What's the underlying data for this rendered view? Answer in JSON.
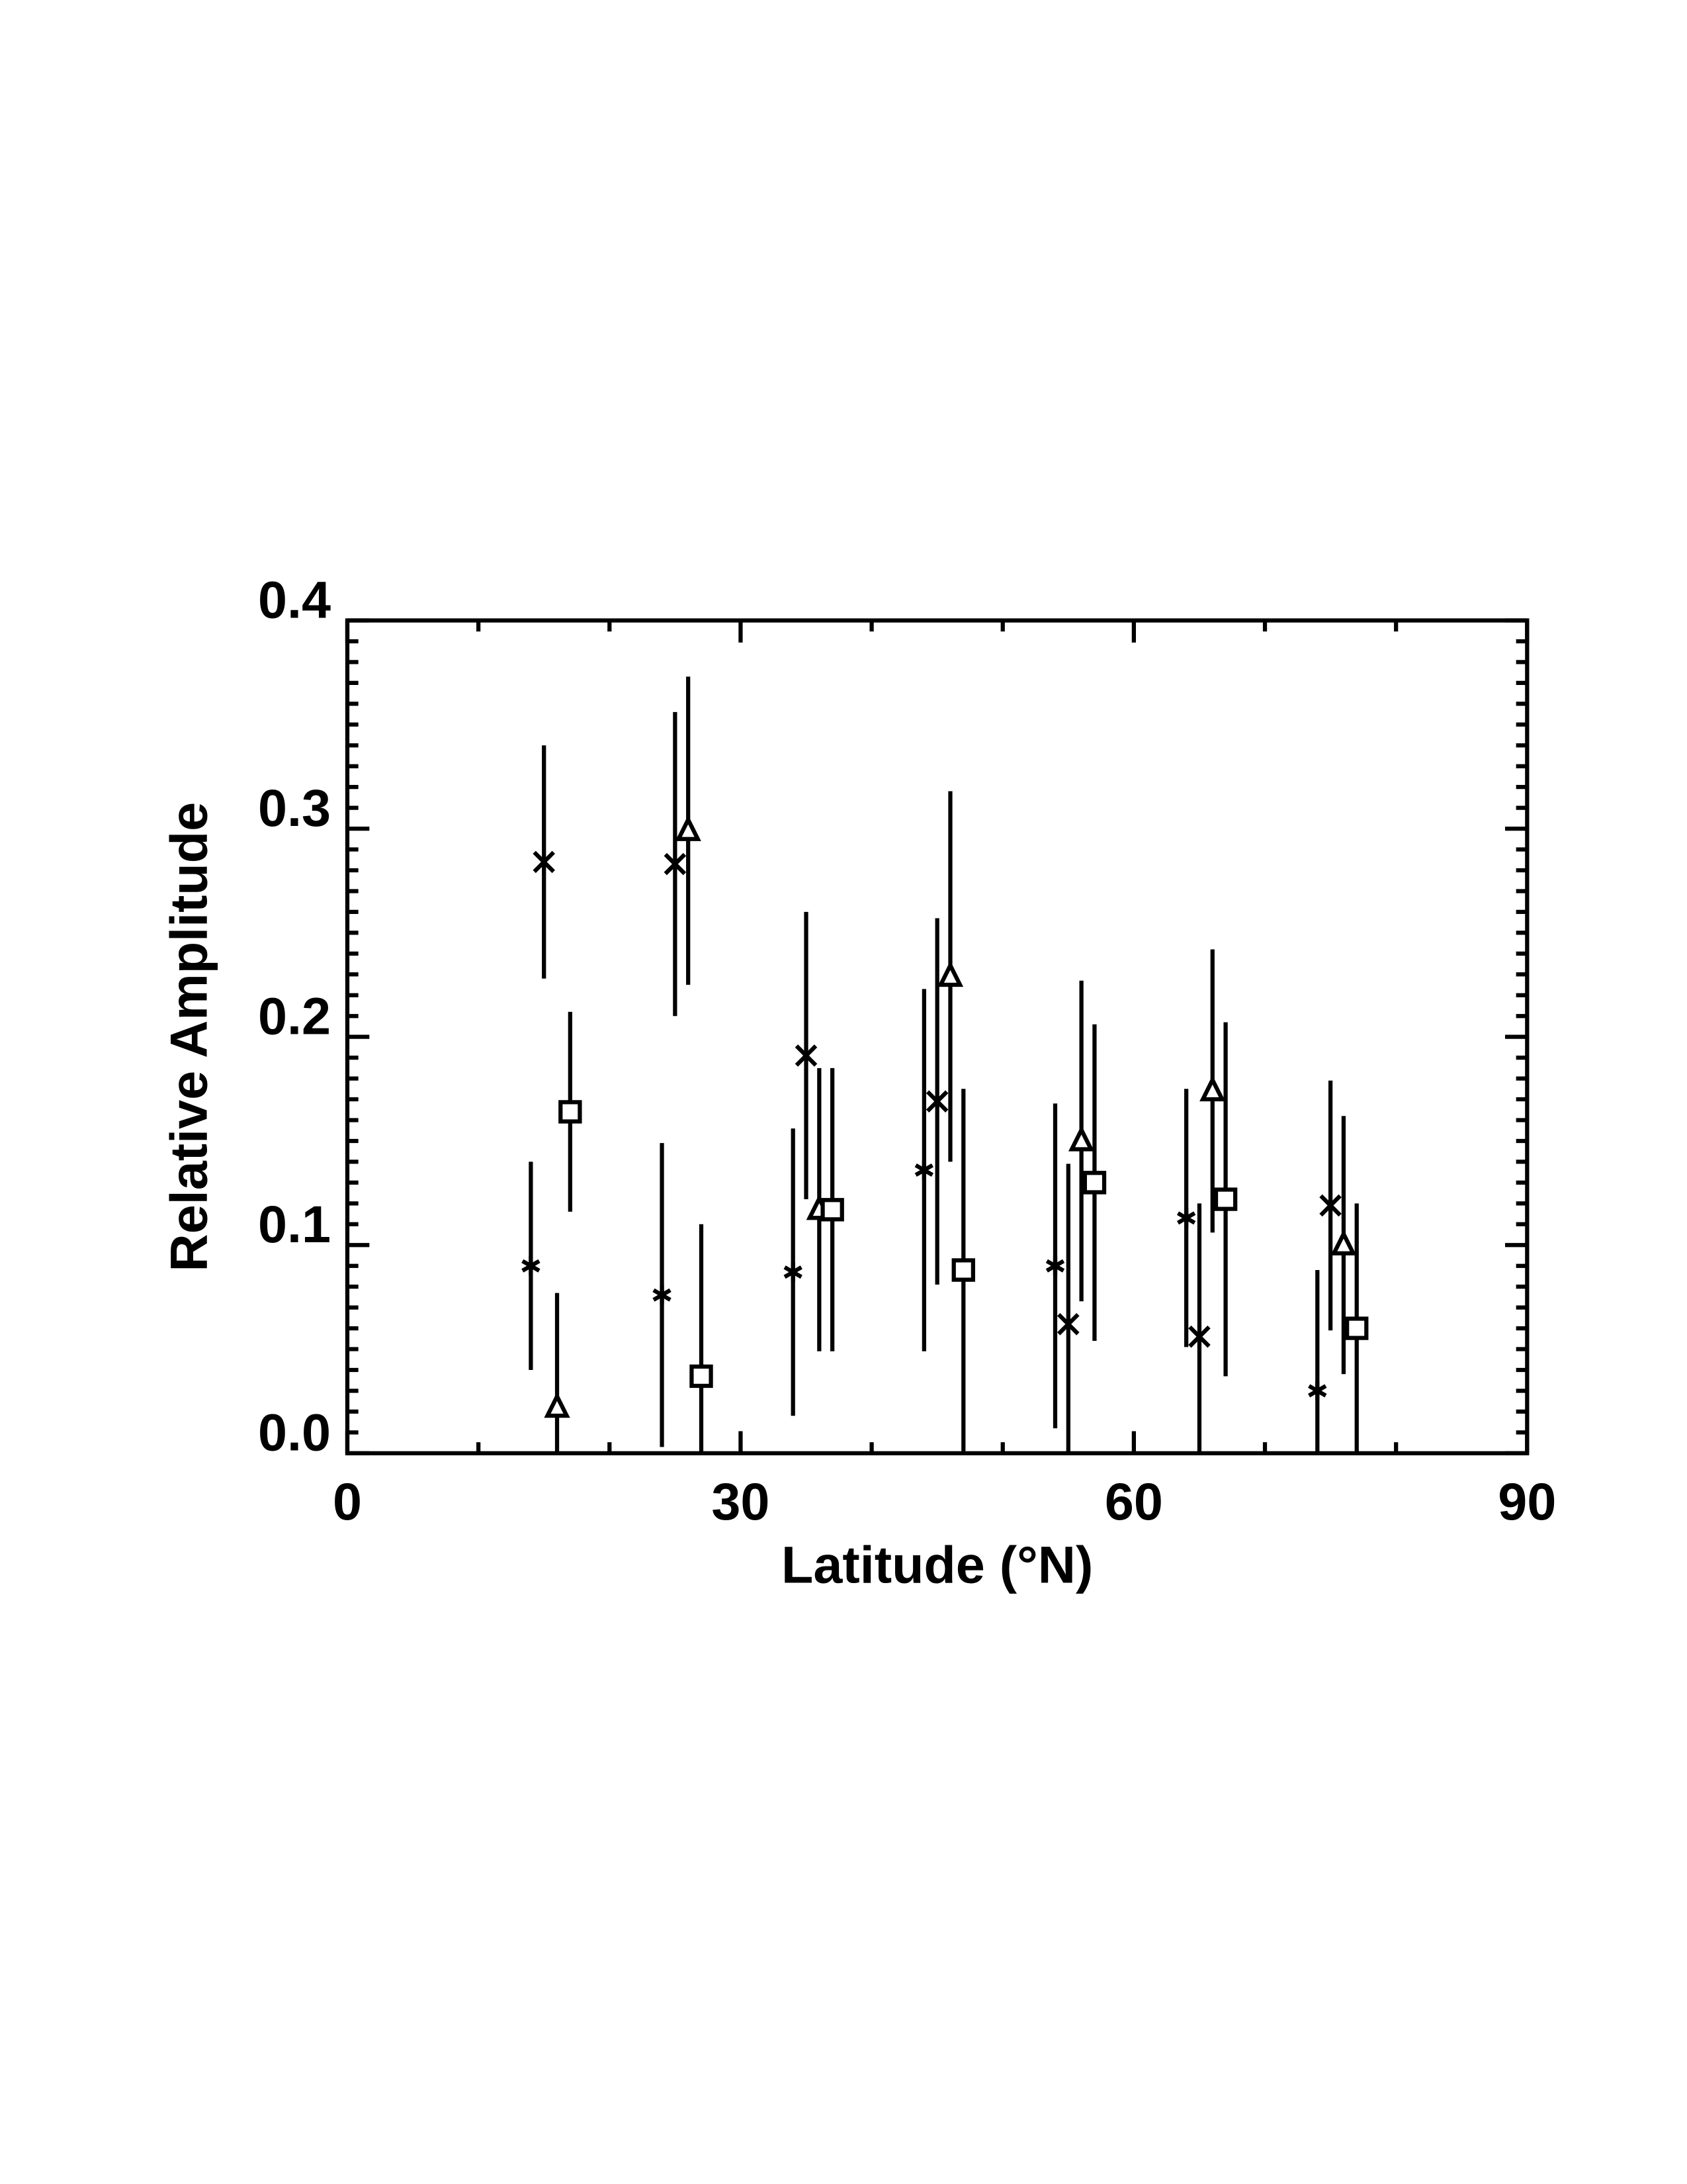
{
  "chart_data": {
    "type": "scatter",
    "xlabel": "Latitude (°N)",
    "ylabel": "Relative Amplitude",
    "xlim": [
      0,
      90
    ],
    "xticks": [
      0,
      30,
      60,
      90
    ],
    "ylim": [
      0,
      0.4
    ],
    "yticks": [
      {
        "value": 0,
        "label": "0.0"
      },
      0.1,
      0.2,
      0.3,
      0.4
    ],
    "series": [
      {
        "marker": "asterisk",
        "color": "#000000",
        "x": [
          14,
          24,
          34,
          44,
          54,
          64,
          74
        ],
        "values": [
          0.09,
          0.076,
          0.087,
          0.136,
          0.09,
          0.113,
          0.03
        ],
        "errors": [
          0.05,
          0.073,
          0.069,
          0.087,
          0.078,
          0.062,
          0.058
        ]
      },
      {
        "marker": "x",
        "color": "#000000",
        "x": [
          15,
          25,
          35,
          45,
          55,
          65,
          75
        ],
        "values": [
          0.284,
          0.283,
          0.191,
          0.169,
          0.062,
          0.056,
          0.119
        ],
        "errors": [
          0.056,
          0.073,
          0.069,
          0.088,
          0.077,
          0.064,
          0.06
        ]
      },
      {
        "marker": "triangle",
        "color": "#000000",
        "x": [
          16,
          26,
          36,
          46,
          56,
          66,
          76
        ],
        "values": [
          0.022,
          0.299,
          0.117,
          0.229,
          0.15,
          0.174,
          0.1
        ],
        "errors": [
          0.055,
          0.074,
          0.068,
          0.089,
          0.077,
          0.068,
          0.062
        ]
      },
      {
        "marker": "square",
        "color": "#000000",
        "x": [
          17,
          27,
          37,
          47,
          57,
          67,
          77
        ],
        "values": [
          0.164,
          0.037,
          0.117,
          0.088,
          0.13,
          0.122,
          0.06
        ],
        "errors": [
          0.048,
          0.073,
          0.068,
          0.087,
          0.076,
          0.085,
          0.06
        ]
      }
    ]
  }
}
